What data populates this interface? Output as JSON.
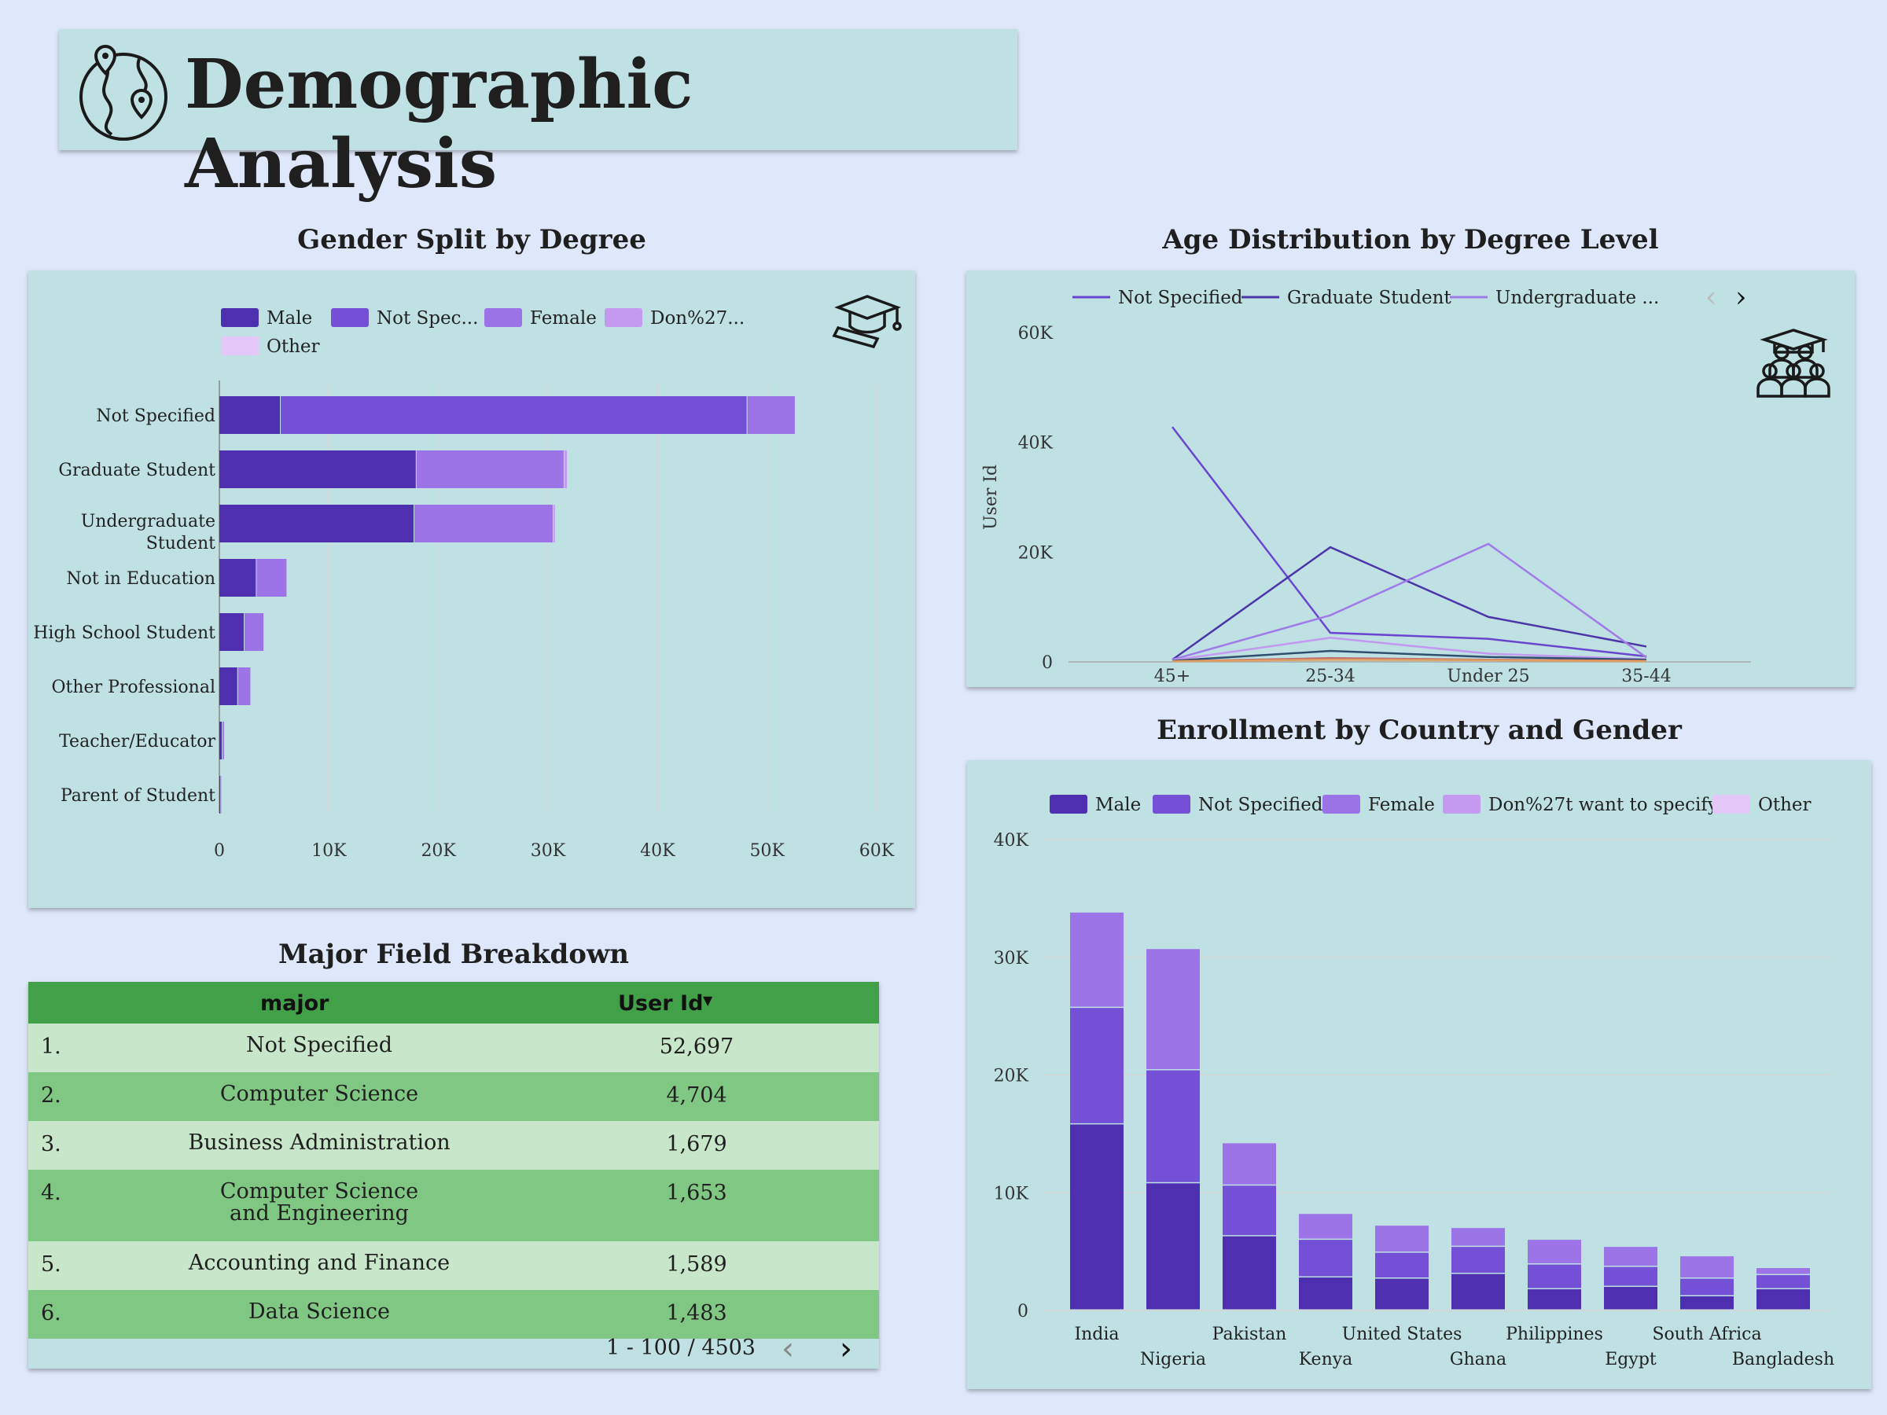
{
  "header": {
    "title": "Demographic Analysis",
    "icon": "globe-location-icon"
  },
  "sections": {
    "gender_degree": "Gender Split by Degree",
    "age_degree": "Age Distribution by Degree Level",
    "major_field": "Major Field Breakdown",
    "country_gender": "Enrollment by Country and Gender"
  },
  "colors": {
    "male": "#4d2fb0",
    "not_specified": "#7350d6",
    "female": "#9c74e8",
    "dont_specify": "#c39af0",
    "other": "#e3c8f7",
    "panel": "#bfe1e4",
    "page": "#dfe7fb",
    "table_header": "#42a148",
    "row_light": "#c8e6c9",
    "row_dark": "#81c784"
  },
  "chart_data": [
    {
      "type": "bar",
      "orientation": "horizontal",
      "stacked": true,
      "legend": [
        "Male",
        "Not Spec...",
        "Female",
        "Don%27...",
        "Other"
      ],
      "categories": [
        "Not Specified",
        "Graduate Student",
        "Undergraduate Student",
        "Not in Education",
        "High School Student",
        "Other Professional",
        "Teacher/Educator",
        "Parent of Student"
      ],
      "series": [
        {
          "name": "Male",
          "values": [
            5600,
            18000,
            17800,
            3400,
            2300,
            1700,
            300,
            100
          ]
        },
        {
          "name": "Not Spec...",
          "values": [
            42600,
            0,
            0,
            0,
            0,
            0,
            0,
            0
          ]
        },
        {
          "name": "Female",
          "values": [
            4400,
            13500,
            12700,
            2800,
            1800,
            1200,
            200,
            100
          ]
        },
        {
          "name": "Don%27...",
          "values": [
            0,
            300,
            200,
            0,
            0,
            0,
            0,
            0
          ]
        },
        {
          "name": "Other",
          "values": [
            0,
            0,
            0,
            0,
            0,
            0,
            0,
            0
          ]
        }
      ],
      "xticks": [
        "0",
        "10K",
        "20K",
        "30K",
        "40K",
        "50K",
        "60K"
      ],
      "xlim": [
        0,
        60000
      ],
      "grid": true,
      "legend_position": "top"
    },
    {
      "type": "line",
      "legend": [
        "Not Specified",
        "Graduate Student",
        "Undergraduate ..."
      ],
      "x": [
        "45+",
        "25-34",
        "Under 25",
        "35-44"
      ],
      "series": [
        {
          "name": "Not Specified",
          "color": "#6a46d0",
          "values": [
            42800,
            5300,
            4200,
            1000
          ]
        },
        {
          "name": "Graduate Student",
          "color": "#4b35a8",
          "values": [
            400,
            20900,
            8200,
            2800
          ]
        },
        {
          "name": "Undergraduate ...",
          "color": "#a07ae8",
          "values": [
            400,
            8500,
            21500,
            800
          ]
        },
        {
          "color": "#c39af0",
          "values": [
            300,
            4400,
            1500,
            500
          ]
        },
        {
          "color": "#2f4f6f",
          "values": [
            200,
            2000,
            900,
            400
          ]
        },
        {
          "color": "#c07070",
          "values": [
            100,
            700,
            400,
            200
          ]
        },
        {
          "color": "#e0a060",
          "values": [
            100,
            400,
            300,
            100
          ]
        }
      ],
      "ylabel": "User Id",
      "yticks": [
        "0",
        "20K",
        "40K",
        "60K"
      ],
      "ylim": [
        0,
        60000
      ],
      "legend_position": "top"
    },
    {
      "type": "bar",
      "stacked": true,
      "legend": [
        "Male",
        "Not Specified",
        "Female",
        "Don%27t want to specify",
        "Other"
      ],
      "categories": [
        "India",
        "Nigeria",
        "Pakistan",
        "Kenya",
        "United States",
        "Ghana",
        "Philippines",
        "Egypt",
        "South Africa",
        "Bangladesh"
      ],
      "series": [
        {
          "name": "Male",
          "values": [
            15800,
            10800,
            6300,
            2800,
            2700,
            3100,
            1800,
            2000,
            1200,
            1800
          ]
        },
        {
          "name": "Not Specified",
          "values": [
            9900,
            9600,
            4300,
            3200,
            2200,
            2300,
            2100,
            1700,
            1500,
            1200
          ]
        },
        {
          "name": "Female",
          "values": [
            8100,
            10300,
            3600,
            2200,
            2300,
            1600,
            2100,
            1700,
            1900,
            600
          ]
        },
        {
          "name": "Don%27t want to specify",
          "values": [
            0,
            0,
            0,
            0,
            0,
            0,
            0,
            0,
            0,
            0
          ]
        },
        {
          "name": "Other",
          "values": [
            0,
            0,
            0,
            0,
            0,
            0,
            0,
            0,
            0,
            0
          ]
        }
      ],
      "yticks": [
        "0",
        "10K",
        "20K",
        "30K",
        "40K"
      ],
      "ylim": [
        0,
        40000
      ],
      "grid": true,
      "legend_position": "top"
    }
  ],
  "table": {
    "columns": [
      "major",
      "User Id"
    ],
    "sort_icon": "sort-desc-icon",
    "rows": [
      {
        "num": "1.",
        "major": "Not Specified",
        "value": "52,697"
      },
      {
        "num": "2.",
        "major": "Computer Science",
        "value": "4,704"
      },
      {
        "num": "3.",
        "major": "Business Administration",
        "value": "1,679"
      },
      {
        "num": "4.",
        "major": "Computer Science and Engineering",
        "value": "1,653"
      },
      {
        "num": "5.",
        "major": "Accounting and Finance",
        "value": "1,589"
      },
      {
        "num": "6.",
        "major": "Data Science",
        "value": "1,483"
      }
    ],
    "pagination": "1 - 100 / 4503"
  }
}
